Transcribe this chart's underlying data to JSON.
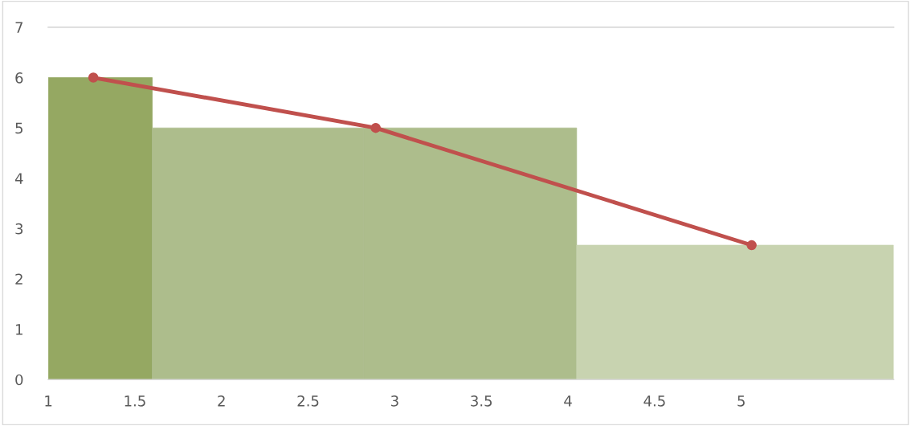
{
  "chart_data": {
    "type": "histogram",
    "bins": [
      1,
      1.6,
      2.82,
      4.05,
      5.88
    ],
    "values": [
      6,
      5,
      5,
      2.67
    ],
    "colors": [
      "#95a862",
      "#adbd8c",
      "#adbd8c",
      "#c8d3b0"
    ],
    "series": [
      {
        "type": "line",
        "color": "#c0504d",
        "x": [
          1.26,
          2.89,
          5.06
        ],
        "values": [
          6,
          5,
          2.67
        ],
        "marker": "circle"
      }
    ],
    "xlim": [
      1,
      5.88
    ],
    "xticks": [
      1,
      1.5,
      2,
      2.5,
      3,
      3.5,
      4,
      4.5,
      5
    ],
    "ylim": [
      0,
      7
    ],
    "yticks": [
      0,
      1,
      2,
      3,
      4,
      5,
      6,
      7
    ],
    "grid": false,
    "legend": false
  }
}
